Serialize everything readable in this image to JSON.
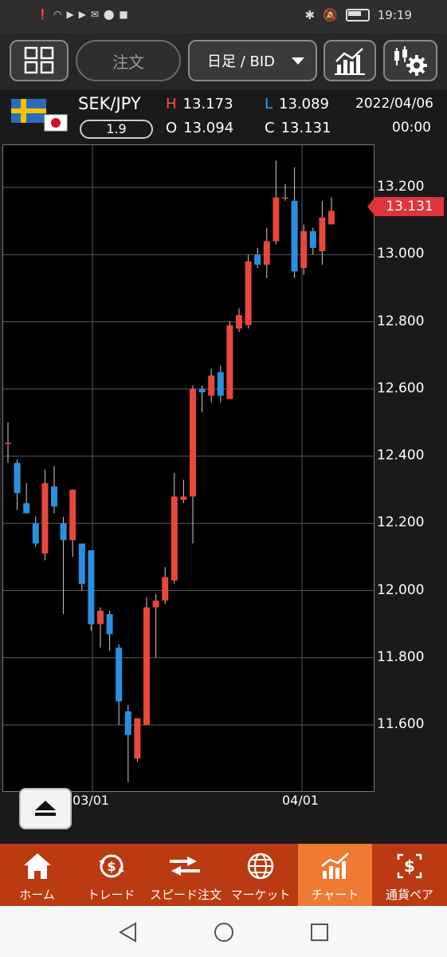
{
  "status_bar": {
    "time": "19:19"
  },
  "toolbar": {
    "order_label": "注文",
    "timeframe_label": "日足 / BID"
  },
  "pair": {
    "symbol": "SEK/JPY",
    "spread": "1.9",
    "high_key": "H",
    "high": "13.173",
    "low_key": "L",
    "low": "13.089",
    "open_key": "O",
    "open": "13.094",
    "close_key": "C",
    "close": "13.131",
    "date": "2022/04/06",
    "time": "00:00"
  },
  "colors": {
    "up": "#e8473b",
    "down": "#2b8fe0",
    "accent": "#e0333b",
    "nav_bg": "#ba3a12",
    "nav_active": "#ee7a33"
  },
  "chart_data": {
    "type": "candlestick",
    "current_price": "13.131",
    "ylim": [
      11.39,
      13.3
    ],
    "y_ticks": [
      "13.200",
      "13.000",
      "12.800",
      "12.600",
      "12.400",
      "12.200",
      "12.000",
      "11.800",
      "11.600"
    ],
    "x_ticks": [
      "03/01",
      "04/01"
    ],
    "candles": [
      {
        "o": 12.44,
        "h": 12.5,
        "l": 12.38,
        "c": 12.44
      },
      {
        "o": 12.38,
        "h": 12.39,
        "l": 12.24,
        "c": 12.29
      },
      {
        "o": 12.26,
        "h": 12.32,
        "l": 12.23,
        "c": 12.23
      },
      {
        "o": 12.2,
        "h": 12.22,
        "l": 12.13,
        "c": 12.14
      },
      {
        "o": 12.11,
        "h": 12.36,
        "l": 12.09,
        "c": 12.32
      },
      {
        "o": 12.31,
        "h": 12.37,
        "l": 12.23,
        "c": 12.25
      },
      {
        "o": 12.2,
        "h": 12.22,
        "l": 11.93,
        "c": 12.15
      },
      {
        "o": 12.15,
        "h": 12.3,
        "l": 12.1,
        "c": 12.3
      },
      {
        "o": 12.14,
        "h": 12.14,
        "l": 12.0,
        "c": 12.02
      },
      {
        "o": 12.12,
        "h": 12.12,
        "l": 11.88,
        "c": 11.9
      },
      {
        "o": 11.9,
        "h": 11.95,
        "l": 11.83,
        "c": 11.94
      },
      {
        "o": 11.93,
        "h": 11.94,
        "l": 11.82,
        "c": 11.87
      },
      {
        "o": 11.83,
        "h": 11.84,
        "l": 11.6,
        "c": 11.67
      },
      {
        "o": 11.64,
        "h": 11.66,
        "l": 11.43,
        "c": 11.57
      },
      {
        "o": 11.5,
        "h": 11.62,
        "l": 11.49,
        "c": 11.62
      },
      {
        "o": 11.6,
        "h": 11.98,
        "l": 11.6,
        "c": 11.95
      },
      {
        "o": 11.95,
        "h": 11.99,
        "l": 11.8,
        "c": 11.97
      },
      {
        "o": 11.97,
        "h": 12.07,
        "l": 11.96,
        "c": 12.04
      },
      {
        "o": 12.03,
        "h": 12.35,
        "l": 12.02,
        "c": 12.28
      },
      {
        "o": 12.27,
        "h": 12.33,
        "l": 12.26,
        "c": 12.28
      },
      {
        "o": 12.28,
        "h": 12.61,
        "l": 12.14,
        "c": 12.6
      },
      {
        "o": 12.6,
        "h": 12.61,
        "l": 12.53,
        "c": 12.59
      },
      {
        "o": 12.58,
        "h": 12.66,
        "l": 12.56,
        "c": 12.64
      },
      {
        "o": 12.65,
        "h": 12.67,
        "l": 12.56,
        "c": 12.58
      },
      {
        "o": 12.57,
        "h": 12.8,
        "l": 12.57,
        "c": 12.79
      },
      {
        "o": 12.78,
        "h": 12.84,
        "l": 12.77,
        "c": 12.82
      },
      {
        "o": 12.79,
        "h": 13.0,
        "l": 12.78,
        "c": 12.98
      },
      {
        "o": 13.0,
        "h": 13.02,
        "l": 12.96,
        "c": 12.97
      },
      {
        "o": 12.97,
        "h": 13.08,
        "l": 12.93,
        "c": 13.04
      },
      {
        "o": 13.04,
        "h": 13.28,
        "l": 13.03,
        "c": 13.17
      },
      {
        "o": 13.17,
        "h": 13.21,
        "l": 13.16,
        "c": 13.17
      },
      {
        "o": 13.16,
        "h": 13.26,
        "l": 12.93,
        "c": 12.95
      },
      {
        "o": 12.96,
        "h": 13.09,
        "l": 12.94,
        "c": 13.07
      },
      {
        "o": 13.07,
        "h": 13.08,
        "l": 13.0,
        "c": 13.02
      },
      {
        "o": 13.01,
        "h": 13.16,
        "l": 12.97,
        "c": 13.11
      },
      {
        "o": 13.09,
        "h": 13.17,
        "l": 13.09,
        "c": 13.13
      }
    ]
  },
  "bottom_nav": [
    {
      "label": "ホーム",
      "icon": "home-icon"
    },
    {
      "label": "トレード",
      "icon": "trade-icon"
    },
    {
      "label": "スピード注文",
      "icon": "speed-order-icon"
    },
    {
      "label": "マーケット",
      "icon": "globe-icon"
    },
    {
      "label": "チャート",
      "icon": "chart-icon",
      "active": true
    },
    {
      "label": "通貨ペア",
      "icon": "currency-pair-icon"
    }
  ]
}
